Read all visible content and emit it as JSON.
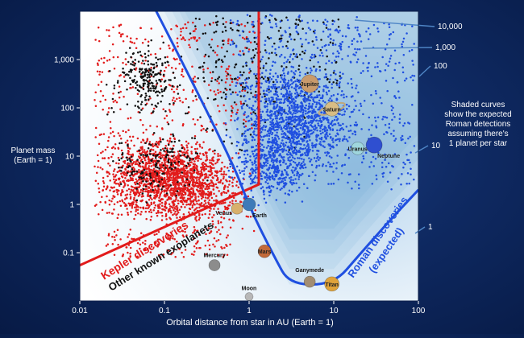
{
  "chart_data": {
    "type": "scatter",
    "x_scale": "log",
    "y_scale": "log",
    "xlim": [
      0.01,
      100
    ],
    "ylim": [
      0.01,
      10000
    ],
    "xlabel": "Orbital distance from star in AU (Earth = 1)",
    "ylabel": "Planet mass\n(Earth = 1)",
    "x_ticks": [
      "0.01",
      "0.1",
      "1",
      "10",
      "100"
    ],
    "y_ticks": [
      "0.1",
      "1",
      "10",
      "100",
      "1,000"
    ],
    "colors": {
      "kepler": "#e21b1b",
      "other": "#111111",
      "roman": "#1f4fe0",
      "contour_label": "#ffffff",
      "plot_bg_light": "#ffffff",
      "plot_bg_blue": "#9cc5e6"
    },
    "series": [
      {
        "name": "Kepler discoveries",
        "color": "#e21b1b",
        "approx_count": 2400,
        "regions": [
          {
            "x_range": [
              0.015,
              1.2
            ],
            "y_range": [
              0.3,
              30
            ],
            "density": "very high near x 0.05–0.3, y 1–10"
          },
          {
            "x_range": [
              0.015,
              1.3
            ],
            "y_range": [
              30,
              10000
            ],
            "density": "sparse"
          },
          {
            "x_range": [
              0.02,
              0.5
            ],
            "y_range": [
              0.08,
              0.3
            ],
            "density": "sparse"
          }
        ]
      },
      {
        "name": "Other known exoplanets",
        "color": "#111111",
        "approx_count": 700,
        "regions": [
          {
            "x_range": [
              0.02,
              0.1
            ],
            "y_range": [
              100,
              3000
            ],
            "density": "high"
          },
          {
            "x_range": [
              0.3,
              10
            ],
            "y_range": [
              200,
              8000
            ],
            "density": "moderate"
          },
          {
            "x_range": [
              0.03,
              0.3
            ],
            "y_range": [
              0.5,
              30
            ],
            "density": "moderate"
          }
        ]
      },
      {
        "name": "Roman discoveries (expected)",
        "color": "#1f4fe0",
        "approx_count": 2200,
        "regions": [
          {
            "x_range": [
              0.5,
              15
            ],
            "y_range": [
              1,
              3000
            ],
            "density": "high near x 1.5–6, y 10–300"
          },
          {
            "x_range": [
              8,
              90
            ],
            "y_range": [
              2,
              6000
            ],
            "density": "sparse"
          }
        ]
      }
    ],
    "solar_system": [
      {
        "name": "Jupiter",
        "x": 5.2,
        "y": 318,
        "color": "#c99a6c"
      },
      {
        "name": "Saturn",
        "x": 9.5,
        "y": 95,
        "color": "#d8bd84"
      },
      {
        "name": "Uranus",
        "x": 19.2,
        "y": 14.5,
        "color": "#9fd6dd"
      },
      {
        "name": "Neptune",
        "x": 30,
        "y": 17,
        "color": "#2f4fd0"
      },
      {
        "name": "Earth",
        "x": 1,
        "y": 1,
        "color": "#3d7ab8"
      },
      {
        "name": "Venus",
        "x": 0.72,
        "y": 0.82,
        "color": "#d8b06c"
      },
      {
        "name": "Mars",
        "x": 1.52,
        "y": 0.107,
        "color": "#c26a3a"
      },
      {
        "name": "Mercury",
        "x": 0.39,
        "y": 0.055,
        "color": "#8c8c8c"
      },
      {
        "name": "Moon",
        "x": 1,
        "y": 0.0123,
        "color": "#b8b8b8"
      },
      {
        "name": "Ganymede",
        "x": 5.2,
        "y": 0.025,
        "color": "#a28d72"
      },
      {
        "name": "Titan",
        "x": 9.5,
        "y": 0.0225,
        "color": "#e0a33a"
      }
    ],
    "kepler_boundary": [
      [
        0.01,
        0.055
      ],
      [
        1.3,
        2.6
      ],
      [
        1.3,
        10000
      ]
    ],
    "roman_sensitivity_curve": [
      [
        0.08,
        10000
      ],
      [
        0.6,
        10
      ],
      [
        1.0,
        0.9
      ],
      [
        2.0,
        0.08
      ],
      [
        3.0,
        0.022
      ],
      [
        10,
        0.022
      ],
      [
        20,
        0.09
      ],
      [
        50,
        0.55
      ],
      [
        100,
        2.0
      ]
    ],
    "contour_labels": [
      {
        "label": "10,000",
        "x_label": 100,
        "y_label": 4000
      },
      {
        "label": "1,000",
        "x_label": 100,
        "y_label": 1450
      },
      {
        "label": "100",
        "x_label": 100,
        "y_label": 600
      },
      {
        "label": "10",
        "x_label": 100,
        "y_label": 12
      },
      {
        "label": "1",
        "x_label": 100,
        "y_label": 0.5
      }
    ],
    "annotations": {
      "kepler_label": "Kepler discoveries",
      "other_label": "Other known exoplanets",
      "roman_label_line1": "Roman discoveries",
      "roman_label_line2": "(expected)",
      "side_note": [
        "Shaded curves",
        "show the expected",
        "Roman detections",
        "assuming there's",
        "1 planet per star"
      ]
    }
  }
}
